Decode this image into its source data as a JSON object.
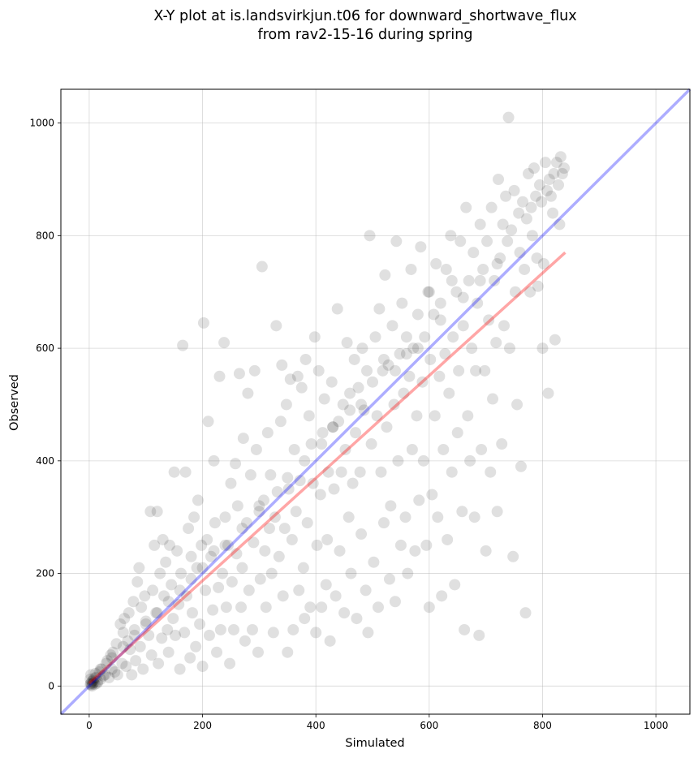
{
  "chart_data": {
    "type": "scatter",
    "title_line1": "X-Y plot at is.landsvirkjun.t06 for downward_shortwave_flux",
    "title_line2": "from rav2-15-16 during spring",
    "xlabel": "Simulated",
    "ylabel": "Observed",
    "xlim": [
      -50,
      1060
    ],
    "ylim": [
      -50,
      1060
    ],
    "xticks": [
      0,
      200,
      400,
      600,
      800,
      1000
    ],
    "yticks": [
      0,
      200,
      400,
      600,
      800,
      1000
    ],
    "grid": true,
    "point_color": "#000000",
    "identity_line": {
      "x": [
        -50,
        1060
      ],
      "y": [
        -50,
        1060
      ],
      "color": "#0000ff"
    },
    "regression_line": {
      "x": [
        0,
        840
      ],
      "y": [
        5,
        770
      ],
      "color": "#ff0000"
    },
    "points": [
      [
        2,
        3
      ],
      [
        3,
        5
      ],
      [
        4,
        2
      ],
      [
        5,
        8
      ],
      [
        6,
        4
      ],
      [
        7,
        10
      ],
      [
        8,
        6
      ],
      [
        2,
        12
      ],
      [
        10,
        3
      ],
      [
        12,
        15
      ],
      [
        3,
        20
      ],
      [
        15,
        8
      ],
      [
        18,
        25
      ],
      [
        5,
        0
      ],
      [
        9,
        14
      ],
      [
        20,
        12
      ],
      [
        22,
        30
      ],
      [
        25,
        18
      ],
      [
        11,
        22
      ],
      [
        14,
        5
      ],
      [
        30,
        40
      ],
      [
        28,
        20
      ],
      [
        35,
        15
      ],
      [
        32,
        45
      ],
      [
        40,
        30
      ],
      [
        38,
        55
      ],
      [
        45,
        25
      ],
      [
        42,
        60
      ],
      [
        50,
        20
      ],
      [
        48,
        75
      ],
      [
        55,
        110
      ],
      [
        58,
        40
      ],
      [
        60,
        95
      ],
      [
        62,
        120
      ],
      [
        65,
        35
      ],
      [
        68,
        80
      ],
      [
        70,
        130
      ],
      [
        72,
        65
      ],
      [
        75,
        20
      ],
      [
        78,
        150
      ],
      [
        80,
        100
      ],
      [
        82,
        45
      ],
      [
        85,
        185
      ],
      [
        88,
        210
      ],
      [
        90,
        70
      ],
      [
        92,
        140
      ],
      [
        95,
        30
      ],
      [
        98,
        160
      ],
      [
        100,
        115
      ],
      [
        105,
        90
      ],
      [
        108,
        310
      ],
      [
        110,
        55
      ],
      [
        112,
        170
      ],
      [
        115,
        250
      ],
      [
        118,
        130
      ],
      [
        120,
        310
      ],
      [
        122,
        40
      ],
      [
        125,
        200
      ],
      [
        128,
        85
      ],
      [
        130,
        260
      ],
      [
        132,
        160
      ],
      [
        135,
        220
      ],
      [
        138,
        100
      ],
      [
        140,
        60
      ],
      [
        142,
        250
      ],
      [
        145,
        180
      ],
      [
        148,
        120
      ],
      [
        150,
        380
      ],
      [
        152,
        90
      ],
      [
        155,
        240
      ],
      [
        158,
        145
      ],
      [
        160,
        30
      ],
      [
        162,
        200
      ],
      [
        165,
        605
      ],
      [
        168,
        95
      ],
      [
        170,
        380
      ],
      [
        172,
        160
      ],
      [
        175,
        280
      ],
      [
        178,
        50
      ],
      [
        180,
        230
      ],
      [
        182,
        130
      ],
      [
        185,
        300
      ],
      [
        188,
        70
      ],
      [
        190,
        210
      ],
      [
        192,
        330
      ],
      [
        195,
        110
      ],
      [
        198,
        250
      ],
      [
        200,
        35
      ],
      [
        202,
        645
      ],
      [
        205,
        170
      ],
      [
        208,
        260
      ],
      [
        210,
        470
      ],
      [
        212,
        90
      ],
      [
        215,
        230
      ],
      [
        218,
        135
      ],
      [
        220,
        400
      ],
      [
        222,
        290
      ],
      [
        225,
        60
      ],
      [
        228,
        175
      ],
      [
        230,
        550
      ],
      [
        232,
        100
      ],
      [
        235,
        200
      ],
      [
        238,
        610
      ],
      [
        240,
        300
      ],
      [
        242,
        140
      ],
      [
        245,
        250
      ],
      [
        248,
        40
      ],
      [
        250,
        360
      ],
      [
        252,
        185
      ],
      [
        255,
        100
      ],
      [
        258,
        395
      ],
      [
        260,
        235
      ],
      [
        262,
        320
      ],
      [
        265,
        555
      ],
      [
        268,
        140
      ],
      [
        270,
        210
      ],
      [
        272,
        440
      ],
      [
        275,
        80
      ],
      [
        278,
        290
      ],
      [
        280,
        520
      ],
      [
        282,
        170
      ],
      [
        285,
        375
      ],
      [
        288,
        100
      ],
      [
        290,
        255
      ],
      [
        292,
        560
      ],
      [
        295,
        420
      ],
      [
        298,
        60
      ],
      [
        300,
        310
      ],
      [
        302,
        190
      ],
      [
        305,
        745
      ],
      [
        308,
        330
      ],
      [
        310,
        240
      ],
      [
        312,
        140
      ],
      [
        315,
        450
      ],
      [
        318,
        280
      ],
      [
        320,
        375
      ],
      [
        322,
        200
      ],
      [
        325,
        95
      ],
      [
        328,
        300
      ],
      [
        330,
        640
      ],
      [
        332,
        345
      ],
      [
        335,
        230
      ],
      [
        338,
        470
      ],
      [
        340,
        570
      ],
      [
        342,
        160
      ],
      [
        345,
        280
      ],
      [
        348,
        500
      ],
      [
        350,
        60
      ],
      [
        352,
        350
      ],
      [
        355,
        545
      ],
      [
        358,
        260
      ],
      [
        360,
        100
      ],
      [
        362,
        420
      ],
      [
        365,
        310
      ],
      [
        368,
        550
      ],
      [
        370,
        170
      ],
      [
        372,
        365
      ],
      [
        375,
        530
      ],
      [
        378,
        210
      ],
      [
        380,
        120
      ],
      [
        382,
        580
      ],
      [
        385,
        290
      ],
      [
        388,
        480
      ],
      [
        390,
        140
      ],
      [
        392,
        430
      ],
      [
        395,
        360
      ],
      [
        398,
        620
      ],
      [
        400,
        95
      ],
      [
        402,
        250
      ],
      [
        405,
        560
      ],
      [
        408,
        340
      ],
      [
        410,
        140
      ],
      [
        412,
        450
      ],
      [
        415,
        510
      ],
      [
        418,
        180
      ],
      [
        420,
        260
      ],
      [
        422,
        380
      ],
      [
        425,
        80
      ],
      [
        428,
        540
      ],
      [
        430,
        460
      ],
      [
        432,
        350
      ],
      [
        435,
        160
      ],
      [
        438,
        670
      ],
      [
        440,
        470
      ],
      [
        442,
        240
      ],
      [
        445,
        380
      ],
      [
        448,
        500
      ],
      [
        450,
        130
      ],
      [
        452,
        420
      ],
      [
        455,
        610
      ],
      [
        458,
        300
      ],
      [
        460,
        520
      ],
      [
        462,
        200
      ],
      [
        465,
        360
      ],
      [
        468,
        580
      ],
      [
        470,
        450
      ],
      [
        472,
        120
      ],
      [
        475,
        530
      ],
      [
        478,
        380
      ],
      [
        480,
        270
      ],
      [
        482,
        600
      ],
      [
        485,
        490
      ],
      [
        488,
        170
      ],
      [
        490,
        560
      ],
      [
        492,
        95
      ],
      [
        495,
        800
      ],
      [
        498,
        430
      ],
      [
        500,
        540
      ],
      [
        502,
        220
      ],
      [
        505,
        620
      ],
      [
        508,
        480
      ],
      [
        510,
        140
      ],
      [
        512,
        670
      ],
      [
        515,
        380
      ],
      [
        518,
        560
      ],
      [
        520,
        290
      ],
      [
        522,
        730
      ],
      [
        525,
        460
      ],
      [
        528,
        570
      ],
      [
        530,
        190
      ],
      [
        532,
        320
      ],
      [
        535,
        640
      ],
      [
        538,
        500
      ],
      [
        540,
        150
      ],
      [
        542,
        790
      ],
      [
        545,
        400
      ],
      [
        548,
        590
      ],
      [
        550,
        250
      ],
      [
        552,
        680
      ],
      [
        555,
        520
      ],
      [
        558,
        300
      ],
      [
        560,
        620
      ],
      [
        562,
        200
      ],
      [
        565,
        550
      ],
      [
        568,
        740
      ],
      [
        570,
        420
      ],
      [
        572,
        600
      ],
      [
        575,
        240
      ],
      [
        578,
        480
      ],
      [
        580,
        660
      ],
      [
        582,
        330
      ],
      [
        585,
        780
      ],
      [
        588,
        540
      ],
      [
        590,
        400
      ],
      [
        592,
        620
      ],
      [
        595,
        250
      ],
      [
        598,
        700
      ],
      [
        600,
        140
      ],
      [
        602,
        580
      ],
      [
        605,
        340
      ],
      [
        608,
        660
      ],
      [
        610,
        480
      ],
      [
        612,
        750
      ],
      [
        615,
        300
      ],
      [
        618,
        550
      ],
      [
        620,
        680
      ],
      [
        622,
        160
      ],
      [
        625,
        420
      ],
      [
        628,
        590
      ],
      [
        630,
        740
      ],
      [
        632,
        260
      ],
      [
        635,
        520
      ],
      [
        638,
        800
      ],
      [
        640,
        380
      ],
      [
        642,
        620
      ],
      [
        645,
        180
      ],
      [
        648,
        700
      ],
      [
        650,
        450
      ],
      [
        652,
        560
      ],
      [
        655,
        790
      ],
      [
        658,
        310
      ],
      [
        660,
        640
      ],
      [
        662,
        100
      ],
      [
        665,
        850
      ],
      [
        668,
        480
      ],
      [
        670,
        720
      ],
      [
        672,
        400
      ],
      [
        675,
        600
      ],
      [
        678,
        770
      ],
      [
        680,
        300
      ],
      [
        682,
        560
      ],
      [
        685,
        680
      ],
      [
        688,
        90
      ],
      [
        690,
        820
      ],
      [
        692,
        420
      ],
      [
        695,
        740
      ],
      [
        698,
        560
      ],
      [
        700,
        240
      ],
      [
        702,
        790
      ],
      [
        705,
        650
      ],
      [
        708,
        380
      ],
      [
        710,
        850
      ],
      [
        712,
        510
      ],
      [
        715,
        720
      ],
      [
        718,
        610
      ],
      [
        720,
        310
      ],
      [
        722,
        900
      ],
      [
        725,
        760
      ],
      [
        728,
        430
      ],
      [
        730,
        820
      ],
      [
        732,
        640
      ],
      [
        735,
        870
      ],
      [
        738,
        790
      ],
      [
        740,
        1010
      ],
      [
        742,
        600
      ],
      [
        745,
        810
      ],
      [
        748,
        230
      ],
      [
        750,
        880
      ],
      [
        752,
        700
      ],
      [
        755,
        500
      ],
      [
        758,
        840
      ],
      [
        760,
        770
      ],
      [
        762,
        390
      ],
      [
        765,
        860
      ],
      [
        768,
        740
      ],
      [
        770,
        130
      ],
      [
        772,
        830
      ],
      [
        775,
        910
      ],
      [
        778,
        700
      ],
      [
        780,
        850
      ],
      [
        782,
        800
      ],
      [
        785,
        920
      ],
      [
        788,
        870
      ],
      [
        790,
        760
      ],
      [
        792,
        710
      ],
      [
        795,
        890
      ],
      [
        798,
        860
      ],
      [
        800,
        600
      ],
      [
        802,
        750
      ],
      [
        805,
        930
      ],
      [
        808,
        880
      ],
      [
        810,
        520
      ],
      [
        812,
        900
      ],
      [
        815,
        870
      ],
      [
        818,
        840
      ],
      [
        820,
        910
      ],
      [
        822,
        615
      ],
      [
        825,
        930
      ],
      [
        828,
        890
      ],
      [
        830,
        820
      ],
      [
        832,
        940
      ],
      [
        835,
        910
      ],
      [
        838,
        920
      ],
      [
        600,
        700
      ],
      [
        640,
        720
      ],
      [
        520,
        580
      ],
      [
        480,
        500
      ],
      [
        380,
        400
      ],
      [
        430,
        460
      ],
      [
        460,
        490
      ],
      [
        540,
        560
      ],
      [
        560,
        590
      ],
      [
        410,
        430
      ],
      [
        350,
        370
      ],
      [
        300,
        320
      ],
      [
        270,
        280
      ],
      [
        240,
        250
      ],
      [
        220,
        240
      ],
      [
        200,
        210
      ],
      [
        180,
        190
      ],
      [
        160,
        170
      ],
      [
        140,
        150
      ],
      [
        120,
        130
      ],
      [
        100,
        110
      ],
      [
        80,
        90
      ],
      [
        60,
        70
      ],
      [
        40,
        50
      ],
      [
        20,
        30
      ],
      [
        690,
        720
      ],
      [
        720,
        750
      ],
      [
        660,
        690
      ],
      [
        580,
        600
      ],
      [
        620,
        650
      ]
    ]
  }
}
